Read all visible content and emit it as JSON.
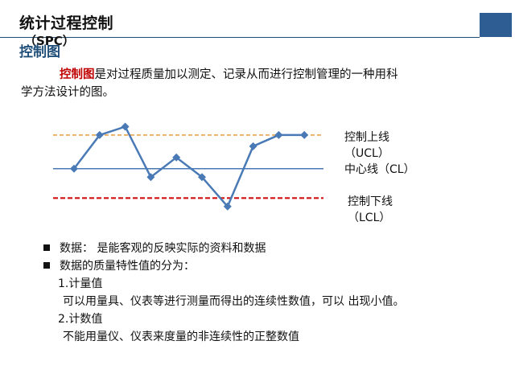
{
  "header": {
    "title": "统计过程控制",
    "subtitle": "（SPC）",
    "section": "控制图",
    "accent_color": "#2e5d93"
  },
  "intro": {
    "keyword": "控制图",
    "text1": "是对过程质量加以测定、记录从而进行控制管理的一种用科",
    "text2": "学方法设计的图。"
  },
  "chart_labels": {
    "ucl_1": "控制上线",
    "ucl_2": "（UCL）",
    "cl": "中心线（CL）",
    "lcl_1": "控制下线",
    "lcl_2": "（LCL）"
  },
  "chart_data": {
    "type": "line",
    "x": [
      1,
      2,
      3,
      4,
      5,
      6,
      7,
      8,
      9,
      10
    ],
    "values": [
      0.0,
      2.4,
      3.0,
      -0.6,
      0.8,
      -0.6,
      -2.7,
      1.6,
      2.4,
      2.4
    ],
    "ucl": 2.4,
    "cl": 0.0,
    "lcl": -2.1,
    "ylim": [
      -3.0,
      3.2
    ],
    "colors": {
      "series": "#4a7ab5",
      "ucl": "#e8a24f",
      "cl": "#4a7ab5",
      "lcl": "#d01010"
    }
  },
  "bullets": {
    "b1": "数据： 是能客观的反映实际的资料和数据",
    "b2": "数据的质量特性值的分为：",
    "s1": "1.计量值",
    "s1d": "可以用量具、仪表等进行测量而得出的连续性数值，可以 出现小值。",
    "s2": "2.计数值",
    "s2d": "不能用量仪、仪表来度量的非连续性的正整数值"
  }
}
